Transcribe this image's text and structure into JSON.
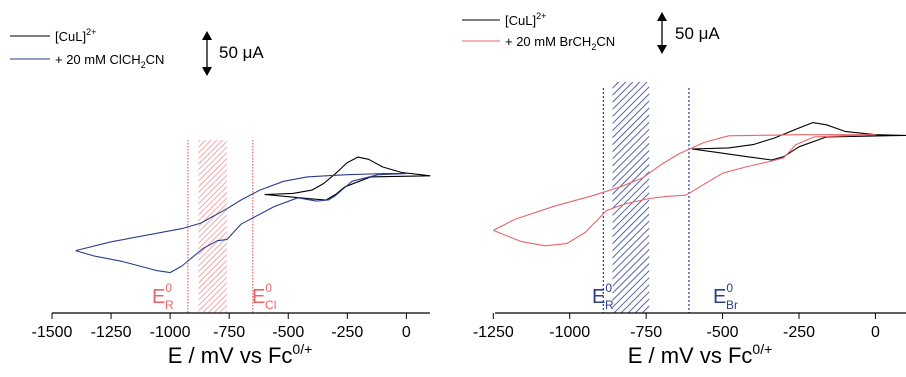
{
  "chart_data": [
    {
      "type": "line",
      "panel": "left",
      "xlabel": "E / mV vs Fc",
      "xlabel_sup": "0/+",
      "xlim": [
        -1500,
        100
      ],
      "x_ticks": [
        -1500,
        -1250,
        -1000,
        -750,
        -500,
        -250,
        0
      ],
      "x_tick_labels": [
        "-1500",
        "-1250",
        "-1000",
        "-750",
        "-500",
        "-250",
        "0"
      ],
      "scale_bar": {
        "label": "50 μA",
        "value_uA": 50
      },
      "legend": [
        {
          "label": "[CuL]",
          "sup": "2+",
          "color": "#000000"
        },
        {
          "label": "+ 20 mM ClCH",
          "sub": "2",
          "label_tail": "CN",
          "color": "#2b3d8f"
        }
      ],
      "series": [
        {
          "name": "[CuL]2+",
          "color": "#000000",
          "points": [
            [
              -600,
              0.25
            ],
            [
              -480,
              0.3
            ],
            [
              -400,
              0.45
            ],
            [
              -350,
              0.75
            ],
            [
              -300,
              1.2
            ],
            [
              -250,
              1.7
            ],
            [
              -205,
              1.95
            ],
            [
              -160,
              1.85
            ],
            [
              -100,
              1.5
            ],
            [
              -20,
              1.25
            ],
            [
              60,
              1.15
            ],
            [
              100,
              1.1
            ]
          ],
          "return": [
            [
              100,
              1.1
            ],
            [
              -150,
              1.05
            ],
            [
              -260,
              0.6
            ],
            [
              -300,
              0.25
            ],
            [
              -340,
              0.0
            ],
            [
              -400,
              0.05
            ],
            [
              -500,
              0.15
            ],
            [
              -600,
              0.25
            ]
          ]
        },
        {
          "name": "+ 20 mM ClCH2CN",
          "color": "#2b3d8f",
          "points": [
            [
              -1400,
              -2.3
            ],
            [
              -1250,
              -1.9
            ],
            [
              -1100,
              -1.6
            ],
            [
              -950,
              -1.3
            ],
            [
              -870,
              -1.05
            ],
            [
              -820,
              -0.75
            ],
            [
              -760,
              -0.4
            ],
            [
              -700,
              0.0
            ],
            [
              -620,
              0.45
            ],
            [
              -520,
              0.85
            ],
            [
              -420,
              1.05
            ],
            [
              -340,
              1.1
            ],
            [
              -250,
              1.15
            ],
            [
              -100,
              1.2
            ],
            [
              0,
              1.2
            ]
          ],
          "return": [
            [
              0,
              1.2
            ],
            [
              -120,
              1.15
            ],
            [
              -230,
              0.85
            ],
            [
              -300,
              0.2
            ],
            [
              -330,
              0.0
            ],
            [
              -380,
              -0.05
            ],
            [
              -460,
              0.1
            ],
            [
              -560,
              -0.3
            ],
            [
              -700,
              -1.1
            ],
            [
              -760,
              -1.8
            ],
            [
              -800,
              -1.85
            ],
            [
              -860,
              -2.2
            ],
            [
              -950,
              -3.0
            ],
            [
              -1000,
              -3.3
            ],
            [
              -1060,
              -3.2
            ],
            [
              -1200,
              -2.8
            ],
            [
              -1320,
              -2.55
            ],
            [
              -1400,
              -2.3
            ]
          ]
        }
      ],
      "annotations": [
        {
          "label": "E",
          "sup": "0",
          "sub": "R",
          "color": "#e8666a",
          "x": -925
        },
        {
          "label": "E",
          "sup": "0",
          "sub": "Cl",
          "color": "#e8666a",
          "x": -650
        }
      ],
      "shaded_region": {
        "x_from": -880,
        "x_to": -760,
        "color": "#f4a3a5"
      }
    },
    {
      "type": "line",
      "panel": "right",
      "xlabel": "E / mV vs Fc",
      "xlabel_sup": "0/+",
      "xlim": [
        -1300,
        100
      ],
      "x_ticks": [
        -1250,
        -1000,
        -750,
        -500,
        -250,
        0
      ],
      "x_tick_labels": [
        "-1250",
        "-1000",
        "-750",
        "-500",
        "-250",
        "0"
      ],
      "scale_bar": {
        "label": "50 μA",
        "value_uA": 50
      },
      "legend": [
        {
          "label": "[CuL]",
          "sup": "2+",
          "color": "#000000"
        },
        {
          "label": "+ 20 mM BrCH",
          "sub": "2",
          "label_tail": "CN",
          "color": "#e8666a"
        }
      ],
      "series": [
        {
          "name": "[CuL]2+",
          "color": "#000000",
          "points": [
            [
              -600,
              0.5
            ],
            [
              -480,
              0.55
            ],
            [
              -400,
              0.7
            ],
            [
              -330,
              1.0
            ],
            [
              -260,
              1.4
            ],
            [
              -205,
              1.7
            ],
            [
              -160,
              1.6
            ],
            [
              -100,
              1.3
            ],
            [
              0,
              1.15
            ],
            [
              100,
              1.12
            ]
          ],
          "return": [
            [
              100,
              1.12
            ],
            [
              -160,
              1.05
            ],
            [
              -250,
              0.6
            ],
            [
              -300,
              0.15
            ],
            [
              -340,
              0.0
            ],
            [
              -420,
              0.15
            ],
            [
              -520,
              0.35
            ],
            [
              -600,
              0.5
            ]
          ]
        },
        {
          "name": "+ 20 mM BrCH2CN",
          "color": "#e8666a",
          "points": [
            [
              -1250,
              -3.2
            ],
            [
              -1180,
              -2.7
            ],
            [
              -1050,
              -2.1
            ],
            [
              -920,
              -1.6
            ],
            [
              -830,
              -1.2
            ],
            [
              -760,
              -0.8
            ],
            [
              -700,
              -0.2
            ],
            [
              -640,
              0.3
            ],
            [
              -560,
              0.8
            ],
            [
              -480,
              1.1
            ],
            [
              -400,
              1.12
            ],
            [
              -250,
              1.15
            ],
            [
              0,
              1.15
            ]
          ],
          "return": [
            [
              0,
              1.15
            ],
            [
              -200,
              1.05
            ],
            [
              -260,
              0.7
            ],
            [
              -300,
              0.1
            ],
            [
              -340,
              -0.05
            ],
            [
              -420,
              -0.3
            ],
            [
              -500,
              -0.6
            ],
            [
              -560,
              -1.1
            ],
            [
              -620,
              -1.6
            ],
            [
              -680,
              -1.65
            ],
            [
              -740,
              -1.75
            ],
            [
              -820,
              -2.0
            ],
            [
              -880,
              -2.3
            ],
            [
              -950,
              -3.3
            ],
            [
              -1010,
              -3.8
            ],
            [
              -1080,
              -3.9
            ],
            [
              -1160,
              -3.7
            ],
            [
              -1250,
              -3.2
            ]
          ]
        }
      ],
      "annotations": [
        {
          "label": "E",
          "sup": "0",
          "sub": "R",
          "color": "#2b3d8f",
          "x": -890
        },
        {
          "label": "E",
          "sup": "0",
          "sub": "Br",
          "color": "#2b3d8f",
          "x": -610
        }
      ],
      "shaded_region": {
        "x_from": -860,
        "x_to": -740,
        "color": "#2b3d8f"
      }
    }
  ]
}
